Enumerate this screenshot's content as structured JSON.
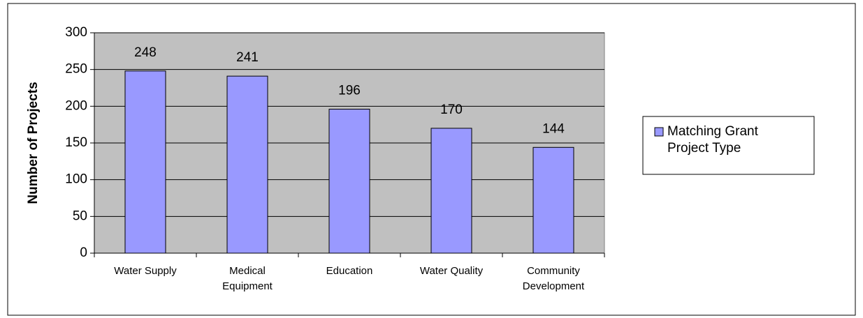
{
  "chart_data": {
    "type": "bar",
    "ylabel": "Number of Projects",
    "categories": [
      "Water Supply",
      "Medical Equipment",
      "Education",
      "Water Quality",
      "Community Development"
    ],
    "series": [
      {
        "name": "Matching Grant Project Type",
        "color": "#9999ff",
        "values": [
          248,
          241,
          196,
          170,
          144
        ]
      }
    ],
    "ylim": [
      0,
      300
    ],
    "yticks": [
      0,
      50,
      100,
      150,
      200,
      250,
      300
    ],
    "grid": true,
    "legend": "right",
    "plot_background": "#c0c0c0"
  }
}
